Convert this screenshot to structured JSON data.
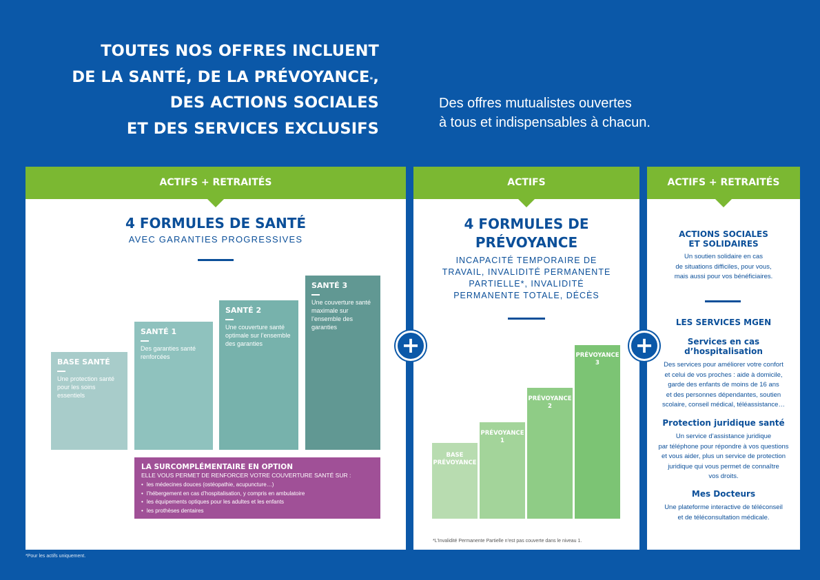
{
  "headline": {
    "line1": "TOUTES NOS OFFRES INCLUENT",
    "line2": "DE LA SANTÉ, DE LA PRÉVOYANCE",
    "line2_mark": "*",
    "line2_end": ",",
    "line3": "DES ACTIONS SOCIALES",
    "line4": "ET DES SERVICES EXCLUSIFS"
  },
  "tagline": {
    "line1": "Des offres mutualistes ouvertes",
    "line2": "à tous et indispensables à chacun."
  },
  "colors": {
    "background": "#0b58a8",
    "green": "#7bb832",
    "navy": "#0b4f99",
    "purple": "#a05097"
  },
  "panel_sante": {
    "header": "ACTIFS + RETRAITÉS",
    "title": "4 FORMULES DE SANTÉ",
    "subtitle": "AVEC GARANTIES PROGRESSIVES",
    "bars": [
      {
        "title": "BASE SANTÉ",
        "desc": "Une protection santé pour les soins essentiels",
        "color": "#a8ccca"
      },
      {
        "title": "SANTÉ 1",
        "desc": "Des garanties santé renforcées",
        "color": "#8fc2be"
      },
      {
        "title": "SANTÉ 2",
        "desc": "Une couverture santé optimale sur l’ensemble des garanties",
        "color": "#77b2ac"
      },
      {
        "title": "SANTÉ 3",
        "desc": "Une couverture santé maximale sur l’ensemble des garanties",
        "color": "#619893"
      }
    ],
    "surcomp": {
      "title": "LA SURCOMPLÉMENTAIRE EN OPTION",
      "subtitle": "ELLE VOUS PERMET DE RENFORCER VOTRE COUVERTURE SANTÉ SUR :",
      "items": [
        "les médecines douces (ostéopathie, acupuncture…)",
        "l’hébergement en cas d’hospitalisation, y compris en ambulatoire",
        "les équipements optiques pour les adultes et les enfants",
        "les prothèses dentaires"
      ]
    },
    "footnote": "*Pour les actifs uniquement."
  },
  "panel_prevoyance": {
    "header": "ACTIFS",
    "title_line1": "4 FORMULES DE",
    "title_line2": "PRÉVOYANCE",
    "subtitle": [
      "INCAPACITÉ TEMPORAIRE DE",
      "TRAVAIL, INVALIDITÉ PERMANENTE",
      "PARTIELLE*, INVALIDITÉ",
      "PERMANENTE TOTALE, DÉCÈS"
    ],
    "bars": [
      {
        "line1": "BASE",
        "line2": "PRÉVOYANCE",
        "color": "#b8dcb0"
      },
      {
        "line1": "PRÉVOYANCE",
        "line2": "1",
        "color": "#a3d49a"
      },
      {
        "line1": "PRÉVOYANCE",
        "line2": "2",
        "color": "#8fcc86"
      },
      {
        "line1": "PRÉVOYANCE",
        "line2": "3",
        "color": "#7cc474"
      }
    ],
    "footnote": "*L’Invalidité Permanente Partielle n’est pas couverte dans le niveau 1."
  },
  "panel_services": {
    "header": "ACTIFS + RETRAITÉS",
    "actions_title": [
      "ACTIONS SOCIALES",
      "ET SOLIDAIRES"
    ],
    "actions_text": [
      "Un soutien solidaire en cas",
      "de situations difficiles, pour vous,",
      "mais aussi pour vos bénéficiaires."
    ],
    "services_title": "LES SERVICES MGEN",
    "hosp_title": [
      "Services en cas",
      "d’hospitalisation"
    ],
    "hosp_text": [
      "Des services pour améliorer votre confort",
      "et celui de vos proches : aide à domicile,",
      "garde des enfants de moins de 16 ans",
      "et des personnes dépendantes, soutien",
      "scolaire, conseil médical, téléassistance…"
    ],
    "juri_title": "Protection juridique santé",
    "juri_text": [
      "Un service d’assistance juridique",
      "par téléphone pour répondre à vos questions",
      "et vous aider, plus un service de protection",
      "juridique qui vous permet de connaître",
      "vos droits."
    ],
    "doc_title": "Mes Docteurs",
    "doc_text": [
      "Une plateforme interactive de téléconseil",
      "et de téléconsultation médicale."
    ]
  },
  "plus_symbol": "+"
}
